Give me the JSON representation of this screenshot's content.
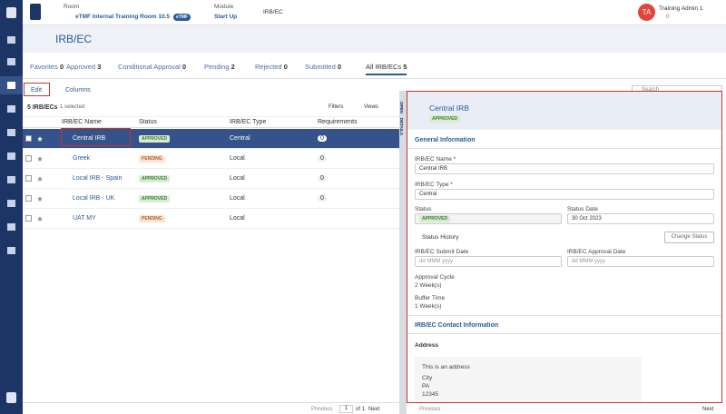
{
  "topbar": {
    "room_label": "Room",
    "room": "eTMF Internal Training Room 10.5",
    "room_badge": "eTMF",
    "module_label": "Module",
    "module": "Start Up",
    "breadcrumb": "IRB/EC",
    "avatar": "TA",
    "user": "Training Admin 1",
    "user_count": "0"
  },
  "page": {
    "title": "IRB/EC",
    "tabs": [
      {
        "label": "Favorites",
        "count": "0"
      },
      {
        "label": "Approved",
        "count": "3"
      },
      {
        "label": "Conditional Approval",
        "count": "0"
      },
      {
        "label": "Pending",
        "count": "2"
      },
      {
        "label": "Rejected",
        "count": "0"
      },
      {
        "label": "Submitted",
        "count": "0"
      },
      {
        "label": "All IRB/ECs",
        "count": "5"
      }
    ],
    "toolbar": {
      "edit": "Edit",
      "columns": "Columns",
      "search": "Search",
      "count": "5 IRB/ECs",
      "selected": "1 selected",
      "filters": "Filters",
      "views": "Views"
    },
    "table": {
      "columns": [
        "IRB/EC Name",
        "Status",
        "IRB/EC Type",
        "Requirements"
      ],
      "rows": [
        [
          "Central IRB",
          "APPROVED",
          "Central",
          "0"
        ],
        [
          "Greek",
          "PENDING",
          "Local",
          "0"
        ],
        [
          "Local IRB - Spain",
          "APPROVED",
          "Local",
          "0"
        ],
        [
          "Local IRB - UK",
          "APPROVED",
          "Local",
          "0"
        ],
        [
          "UAT MY",
          "PENDING",
          "Local"
        ]
      ]
    },
    "pagination": {
      "previous": "Previous",
      "page": "1",
      "of": "of 1",
      "next": "Next"
    }
  },
  "side_tab": {
    "open": "OPEN",
    "details": "DETAILS"
  },
  "detail": {
    "title": "Central IRB",
    "status_badge": "APPROVED",
    "section1": "General Information",
    "name_label": "IRB/EC Name *",
    "name": "Central IRB",
    "type_label": "IRB/EC Type *",
    "type": "Central",
    "status_label": "Status",
    "status": "APPROVED",
    "status_date_label": "Status Date",
    "status_date": "30 Oct 2023",
    "status_history": "Status History",
    "change_status": "Change Status",
    "submit_label": "IRB/EC Submit Date",
    "submit_placeholder": "dd MMM yyyy",
    "approval_label": "IRB/EC Approval Date",
    "approval_placeholder": "dd MMM yyyy",
    "cycle_label": "Approval Cycle",
    "cycle": "2 Week(s)",
    "buffer_label": "Buffer Time",
    "buffer": "1 Week(s)",
    "section2": "IRB/EC Contact Information",
    "address_label": "Address",
    "address": "This is an address",
    "city": "City",
    "state": "PA",
    "zip": "12345",
    "previous": "Previous",
    "next": "Next"
  }
}
